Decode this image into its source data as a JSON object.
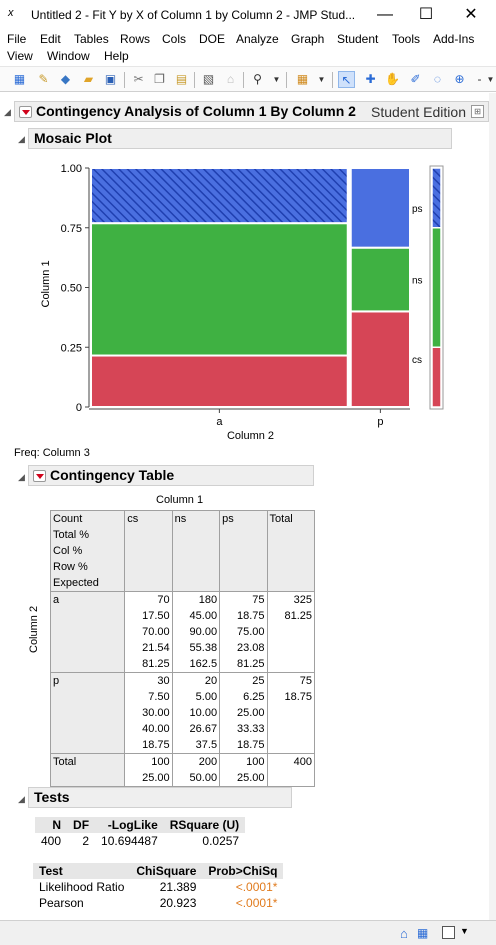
{
  "window": {
    "title": "Untitled 2 - Fit Y by X of Column 1 by Column 2 - JMP Stud...",
    "app_icon": "x",
    "minimize": "—",
    "maximize": "☐",
    "close": "✕"
  },
  "menu": {
    "row1": [
      "File",
      "Edit",
      "Tables",
      "Rows",
      "Cols",
      "DOE",
      "Analyze",
      "Graph",
      "Student",
      "Tools",
      "Add-Ins"
    ],
    "row2": [
      "View",
      "Window",
      "Help"
    ]
  },
  "report": {
    "title": "Contingency Analysis of Column 1 By Column 2",
    "edition": "Student Edition",
    "mosaic_title": "Mosaic Plot",
    "freq_label": "Freq: Column 3",
    "contingency_title": "Contingency Table",
    "tests_title": "Tests"
  },
  "chart_data": {
    "type": "mosaic",
    "ylabel": "Column 1",
    "xlabel": "Column 2",
    "y_ticks": [
      "1.00",
      "0.75",
      "0.50",
      "0.25",
      "0"
    ],
    "x_categories": [
      "a",
      "p"
    ],
    "x_shares": [
      0.8125,
      0.1875
    ],
    "y_categories": [
      "cs",
      "ns",
      "ps"
    ],
    "series": [
      {
        "x": "a",
        "cs": 0.2154,
        "ns": 0.5538,
        "ps": 0.2308
      },
      {
        "x": "p",
        "cs": 0.4,
        "ns": 0.2667,
        "ps": 0.3333
      }
    ],
    "marginal": {
      "cs": 0.25,
      "ns": 0.5,
      "ps": 0.25
    },
    "colors": {
      "cs": "#d64556",
      "ns": "#3fb142",
      "ps": "#4a6fe0"
    },
    "highlighted": "ps in a"
  },
  "contingency": {
    "col_header": "Column 1",
    "row_header": "Column 2",
    "legend": [
      "Count",
      "Total %",
      "Col %",
      "Row %",
      "Expected"
    ],
    "columns": [
      "cs",
      "ns",
      "ps",
      "Total"
    ],
    "rows": [
      {
        "label": "a",
        "cells": [
          [
            "70",
            "17.50",
            "70.00",
            "21.54",
            "81.25"
          ],
          [
            "180",
            "45.00",
            "90.00",
            "55.38",
            "162.5"
          ],
          [
            "75",
            "18.75",
            "75.00",
            "23.08",
            "81.25"
          ],
          [
            "325",
            "81.25"
          ]
        ]
      },
      {
        "label": "p",
        "cells": [
          [
            "30",
            "7.50",
            "30.00",
            "40.00",
            "18.75"
          ],
          [
            "20",
            "5.00",
            "10.00",
            "26.67",
            "37.5"
          ],
          [
            "25",
            "6.25",
            "25.00",
            "33.33",
            "18.75"
          ],
          [
            "75",
            "18.75"
          ]
        ]
      },
      {
        "label": "Total",
        "cells": [
          [
            "100",
            "25.00"
          ],
          [
            "200",
            "50.00"
          ],
          [
            "100",
            "25.00"
          ],
          [
            "400"
          ]
        ]
      }
    ]
  },
  "tests": {
    "summary_headers": [
      "N",
      "DF",
      "-LogLike",
      "RSquare (U)"
    ],
    "summary_values": [
      "400",
      "2",
      "10.694487",
      "0.0257"
    ],
    "test_headers": [
      "Test",
      "ChiSquare",
      "Prob>ChiSq"
    ],
    "test_rows": [
      {
        "name": "Likelihood Ratio",
        "chisq": "21.389",
        "p": "<.0001*"
      },
      {
        "name": "Pearson",
        "chisq": "20.923",
        "p": "<.0001*"
      }
    ]
  },
  "status": {
    "home_icon": "home-icon",
    "window_icon": "window-icon"
  }
}
